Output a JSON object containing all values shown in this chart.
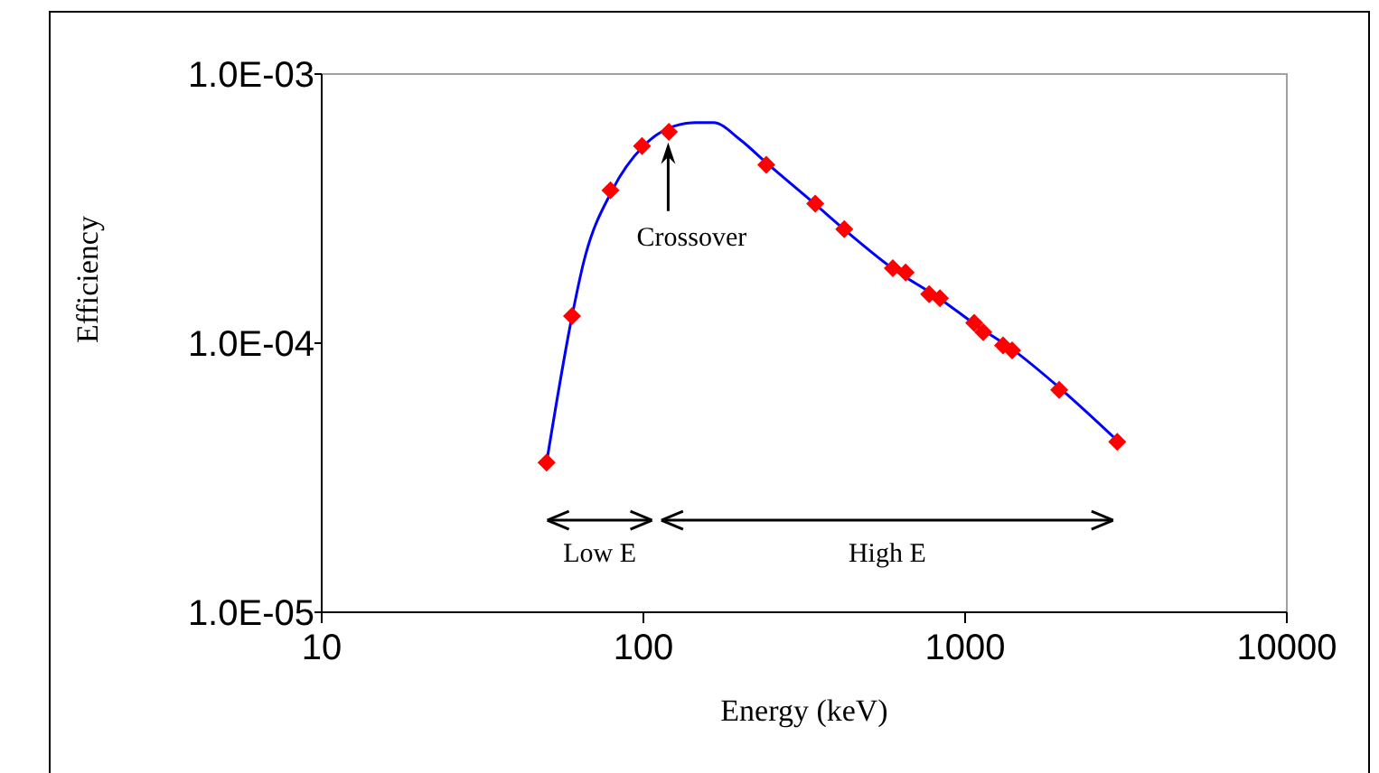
{
  "chart_data": {
    "type": "scatter",
    "xlabel": "Energy (keV)",
    "ylabel": "Efficiency",
    "log": "xy",
    "grid": false,
    "legend": false,
    "xlim": [
      10,
      10000
    ],
    "xticks": [
      10,
      100,
      1000,
      10000
    ],
    "ylim": [
      1e-05,
      0.001
    ],
    "yticks": [
      {
        "value": 1e-05,
        "label": "1.0E-05"
      },
      {
        "value": 0.0001,
        "label": "1.0E-04"
      },
      {
        "value": 0.001,
        "label": "1.0E-03"
      }
    ],
    "series": [
      {
        "type": "line",
        "color": "#0000ff",
        "marker": "none",
        "line_style": "solid",
        "x": [
          50,
          60,
          65,
          80,
          100,
          120,
          145,
          165,
          200,
          240,
          340,
          420,
          600,
          830,
          1100,
          1400,
          2000,
          3000
        ],
        "values": [
          3.6e-05,
          0.000126,
          0.000197,
          0.00037,
          0.00054,
          0.00063,
          0.00066,
          0.00066,
          0.00057,
          0.00047,
          0.00033,
          0.000265,
          0.000188,
          0.000147,
          0.000115,
          9.5e-05,
          6.7e-05,
          4.3e-05
        ]
      },
      {
        "color": "#ff0000",
        "marker": "diamond",
        "x": [
          50,
          60,
          79,
          99,
          120,
          241,
          342,
          421,
          596,
          653,
          773,
          835,
          1067,
          1138,
          1312,
          1400,
          1960,
          2970
        ],
        "values": [
          3.6e-05,
          0.000126,
          0.00037,
          0.00054,
          0.00061,
          0.00046,
          0.00033,
          0.000265,
          0.00019,
          0.000183,
          0.000152,
          0.000147,
          0.000119,
          0.00011,
          9.8e-05,
          9.4e-05,
          6.7e-05,
          4.3e-05
        ]
      }
    ],
    "annotations": [
      "Crossover",
      "Low E",
      "High E"
    ]
  }
}
